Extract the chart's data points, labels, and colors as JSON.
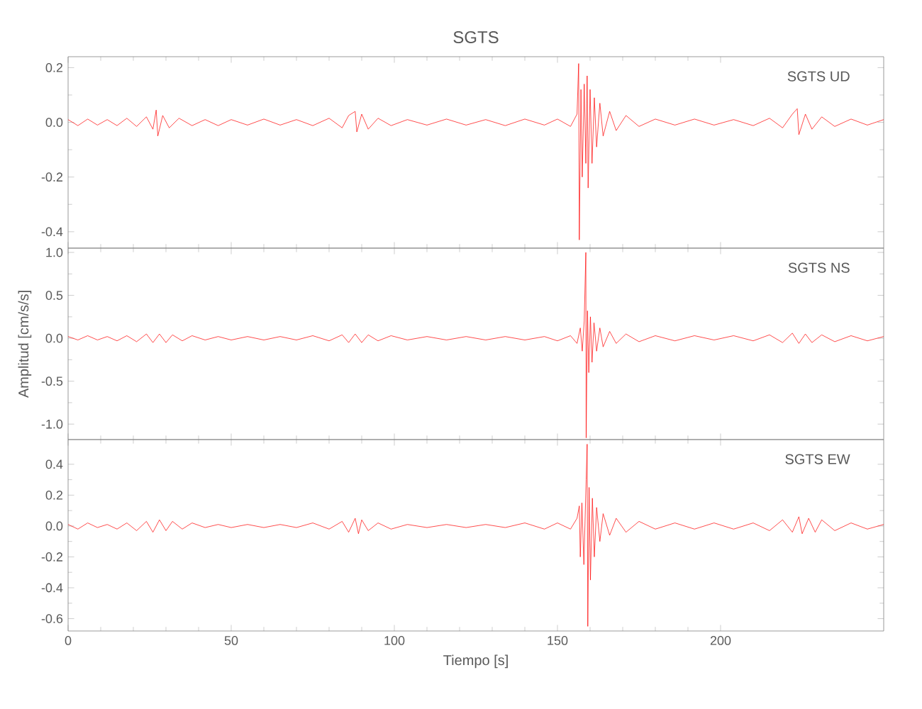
{
  "chart_data": [
    {
      "type": "line",
      "title": "SGTS",
      "annotations": [
        "SGTS UD"
      ],
      "color": "#ff0000",
      "xlim": [
        0,
        250
      ],
      "xticks": [
        0,
        50,
        100,
        150,
        200
      ],
      "ylim": [
        -0.46,
        0.24
      ],
      "yticks": [
        {
          "value": -0.4,
          "label": "-0.4"
        },
        {
          "value": -0.2,
          "label": "-0.2"
        },
        {
          "value": 0,
          "label": "0.0"
        },
        0.2
      ],
      "tick_labels": "y",
      "x": [
        0,
        3,
        6,
        9,
        12,
        15,
        18,
        21,
        24,
        26,
        27,
        27.5,
        29,
        31,
        34,
        38,
        42,
        46,
        50,
        55,
        60,
        65,
        70,
        75,
        80,
        84,
        86,
        88,
        88.5,
        90,
        92,
        95,
        99,
        104,
        110,
        116,
        122,
        128,
        134,
        140,
        146,
        150,
        154,
        156,
        156.5,
        156.7,
        157.2,
        157.6,
        158.2,
        158.7,
        159.1,
        159.4,
        160,
        160.6,
        161.3,
        162,
        163,
        164,
        166,
        168,
        171,
        175,
        180,
        186,
        192,
        198,
        204,
        210,
        215,
        219,
        222,
        223.5,
        224,
        226,
        228,
        231,
        235,
        240,
        245,
        250
      ],
      "values": [
        0.01,
        -0.012,
        0.012,
        -0.01,
        0.01,
        -0.012,
        0.015,
        -0.015,
        0.02,
        -0.025,
        0.045,
        -0.05,
        0.025,
        -0.02,
        0.015,
        -0.012,
        0.01,
        -0.012,
        0.01,
        -0.01,
        0.012,
        -0.01,
        0.01,
        -0.012,
        0.015,
        -0.02,
        0.025,
        0.04,
        -0.035,
        0.03,
        -0.025,
        0.015,
        -0.012,
        0.01,
        -0.01,
        0.012,
        -0.01,
        0.01,
        -0.012,
        0.012,
        -0.01,
        0.012,
        -0.015,
        0.03,
        0.215,
        -0.43,
        0.12,
        -0.2,
        0.14,
        -0.15,
        0.17,
        -0.24,
        0.12,
        -0.15,
        0.09,
        -0.09,
        0.07,
        -0.05,
        0.04,
        -0.03,
        0.025,
        -0.015,
        0.012,
        -0.01,
        0.012,
        -0.01,
        0.01,
        -0.012,
        0.015,
        -0.02,
        0.03,
        0.05,
        -0.045,
        0.03,
        -0.025,
        0.02,
        -0.015,
        0.012,
        -0.01,
        0.01
      ]
    },
    {
      "type": "line",
      "ylabel": "Amplitud [cm/s/s]",
      "annotations": [
        "SGTS NS"
      ],
      "color": "#ff0000",
      "xlim": [
        0,
        250
      ],
      "xticks": [
        0,
        50,
        100,
        150,
        200
      ],
      "ylim": [
        -1.18,
        1.05
      ],
      "yticks": [
        {
          "value": -1,
          "label": "-1.0"
        },
        {
          "value": -0.5,
          "label": "-0.5"
        },
        {
          "value": 0,
          "label": "0.0"
        },
        0.5,
        {
          "value": 1,
          "label": "1.0"
        }
      ],
      "tick_labels": "y",
      "x": [
        0,
        3,
        6,
        9,
        12,
        15,
        18,
        21,
        24,
        26,
        28,
        30,
        32,
        35,
        38,
        42,
        46,
        50,
        55,
        60,
        65,
        70,
        75,
        80,
        84,
        86,
        88,
        90,
        92,
        95,
        99,
        104,
        110,
        116,
        122,
        128,
        134,
        140,
        146,
        150,
        154,
        156,
        157,
        157.6,
        158.2,
        158.7,
        158.8,
        159.2,
        159.6,
        160.1,
        160.6,
        161.2,
        162,
        163,
        164,
        166,
        168,
        171,
        175,
        180,
        186,
        192,
        198,
        204,
        210,
        215,
        219,
        222,
        224,
        226,
        228,
        231,
        235,
        240,
        245,
        250
      ],
      "values": [
        0.02,
        -0.02,
        0.03,
        -0.02,
        0.02,
        -0.03,
        0.03,
        -0.04,
        0.05,
        -0.05,
        0.05,
        -0.05,
        0.04,
        -0.03,
        0.03,
        -0.02,
        0.02,
        -0.02,
        0.02,
        -0.02,
        0.02,
        -0.02,
        0.03,
        -0.03,
        0.04,
        -0.05,
        0.05,
        -0.05,
        0.04,
        -0.03,
        0.03,
        -0.02,
        0.02,
        -0.02,
        0.02,
        -0.02,
        0.02,
        -0.02,
        0.02,
        -0.03,
        0.03,
        -0.06,
        0.12,
        -0.15,
        0.2,
        1.0,
        -1.16,
        0.32,
        -0.4,
        0.25,
        -0.28,
        0.18,
        -0.15,
        0.12,
        -0.1,
        0.08,
        -0.06,
        0.05,
        -0.04,
        0.03,
        -0.03,
        0.03,
        -0.02,
        0.03,
        -0.03,
        0.04,
        -0.05,
        0.06,
        -0.06,
        0.05,
        -0.05,
        0.04,
        -0.04,
        0.03,
        -0.03,
        0.02
      ]
    },
    {
      "type": "line",
      "xlabel": "Tiempo [s]",
      "annotations": [
        "SGTS EW"
      ],
      "color": "#ff0000",
      "xlim": [
        0,
        250
      ],
      "xticks": [
        0,
        50,
        100,
        150,
        200
      ],
      "ylim": [
        -0.68,
        0.56
      ],
      "yticks": [
        {
          "value": -0.6,
          "label": "-0.6"
        },
        {
          "value": -0.4,
          "label": "-0.4"
        },
        {
          "value": -0.2,
          "label": "-0.2"
        },
        {
          "value": 0,
          "label": "0.0"
        },
        0.2,
        0.4
      ],
      "x": [
        0,
        3,
        6,
        9,
        12,
        15,
        18,
        21,
        24,
        26,
        28,
        30,
        32,
        35,
        38,
        42,
        46,
        50,
        55,
        60,
        65,
        70,
        75,
        80,
        84,
        86,
        88,
        89,
        90,
        92,
        95,
        99,
        104,
        110,
        116,
        122,
        128,
        134,
        140,
        146,
        150,
        154,
        156,
        156.7,
        157,
        157.5,
        158.1,
        158.8,
        159.1,
        159.3,
        159.7,
        160.1,
        160.7,
        161.3,
        162,
        163,
        164,
        166,
        168,
        171,
        175,
        180,
        186,
        192,
        198,
        204,
        210,
        215,
        219,
        222,
        224,
        225,
        227,
        229,
        231,
        235,
        240,
        245,
        250
      ],
      "values": [
        0.01,
        -0.02,
        0.02,
        -0.01,
        0.01,
        -0.02,
        0.02,
        -0.03,
        0.03,
        -0.04,
        0.04,
        -0.03,
        0.03,
        -0.02,
        0.02,
        -0.01,
        0.01,
        -0.01,
        0.01,
        -0.01,
        0.01,
        -0.01,
        0.02,
        -0.02,
        0.03,
        -0.04,
        0.05,
        -0.05,
        0.04,
        -0.03,
        0.02,
        -0.02,
        0.01,
        -0.01,
        0.01,
        -0.01,
        0.01,
        -0.01,
        0.02,
        -0.02,
        0.02,
        -0.02,
        0.05,
        0.13,
        -0.2,
        0.15,
        -0.25,
        0.3,
        0.53,
        -0.65,
        0.25,
        -0.35,
        0.18,
        -0.2,
        0.12,
        -0.1,
        0.08,
        -0.06,
        0.05,
        -0.04,
        0.03,
        -0.02,
        0.02,
        -0.02,
        0.02,
        -0.02,
        0.02,
        -0.03,
        0.04,
        -0.04,
        0.06,
        -0.05,
        0.05,
        -0.04,
        0.04,
        -0.03,
        0.02,
        -0.02,
        0.01
      ]
    }
  ]
}
